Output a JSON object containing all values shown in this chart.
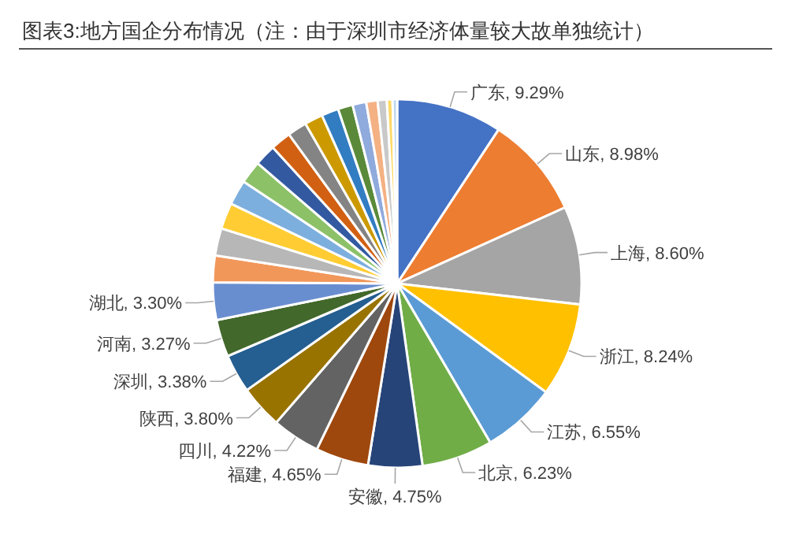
{
  "chart_data": {
    "type": "pie",
    "title": "图表3:地方国企分布情况（注：由于深圳市经济体量较大故单独统计）",
    "categories": [
      "广东",
      "山东",
      "上海",
      "浙江",
      "江苏",
      "北京",
      "安徽",
      "福建",
      "四川",
      "陕西",
      "深圳",
      "河南",
      "湖北",
      null,
      null,
      null,
      null,
      null,
      null,
      null,
      null,
      null,
      null,
      null,
      null,
      null,
      null,
      null,
      null
    ],
    "values": [
      9.29,
      8.98,
      8.6,
      8.24,
      6.55,
      6.23,
      4.75,
      4.65,
      4.22,
      3.8,
      3.38,
      3.27,
      3.3,
      2.34,
      2.4,
      2.3,
      2.2,
      2.0,
      1.9,
      1.8,
      1.7,
      1.6,
      1.5,
      1.3,
      1.2,
      1.0,
      0.8,
      0.5,
      0.4
    ],
    "value_labels": [
      "9.29%",
      "8.98%",
      "8.60%",
      "8.24%",
      "6.55%",
      "6.23%",
      "4.75%",
      "4.65%",
      "4.22%",
      "3.80%",
      "3.38%",
      "3.27%",
      "3.30%",
      null,
      null,
      null,
      null,
      null,
      null,
      null,
      null,
      null,
      null,
      null,
      null,
      null,
      null,
      null,
      null
    ],
    "colors": [
      "#4472c4",
      "#ed7d31",
      "#a5a5a5",
      "#ffc000",
      "#5b9bd5",
      "#70ad47",
      "#264478",
      "#9e480e",
      "#636363",
      "#997300",
      "#255e91",
      "#43682b",
      "#698ed0",
      "#f1975a",
      "#b7b7b7",
      "#ffcd33",
      "#7cafdd",
      "#8cc168",
      "#335aa1",
      "#d26012",
      "#848484",
      "#cc9a00",
      "#327dc2",
      "#5a8a39",
      "#8faadc",
      "#f4b183",
      "#c9c9c9",
      "#ffd966",
      "#bdd7ee"
    ]
  }
}
